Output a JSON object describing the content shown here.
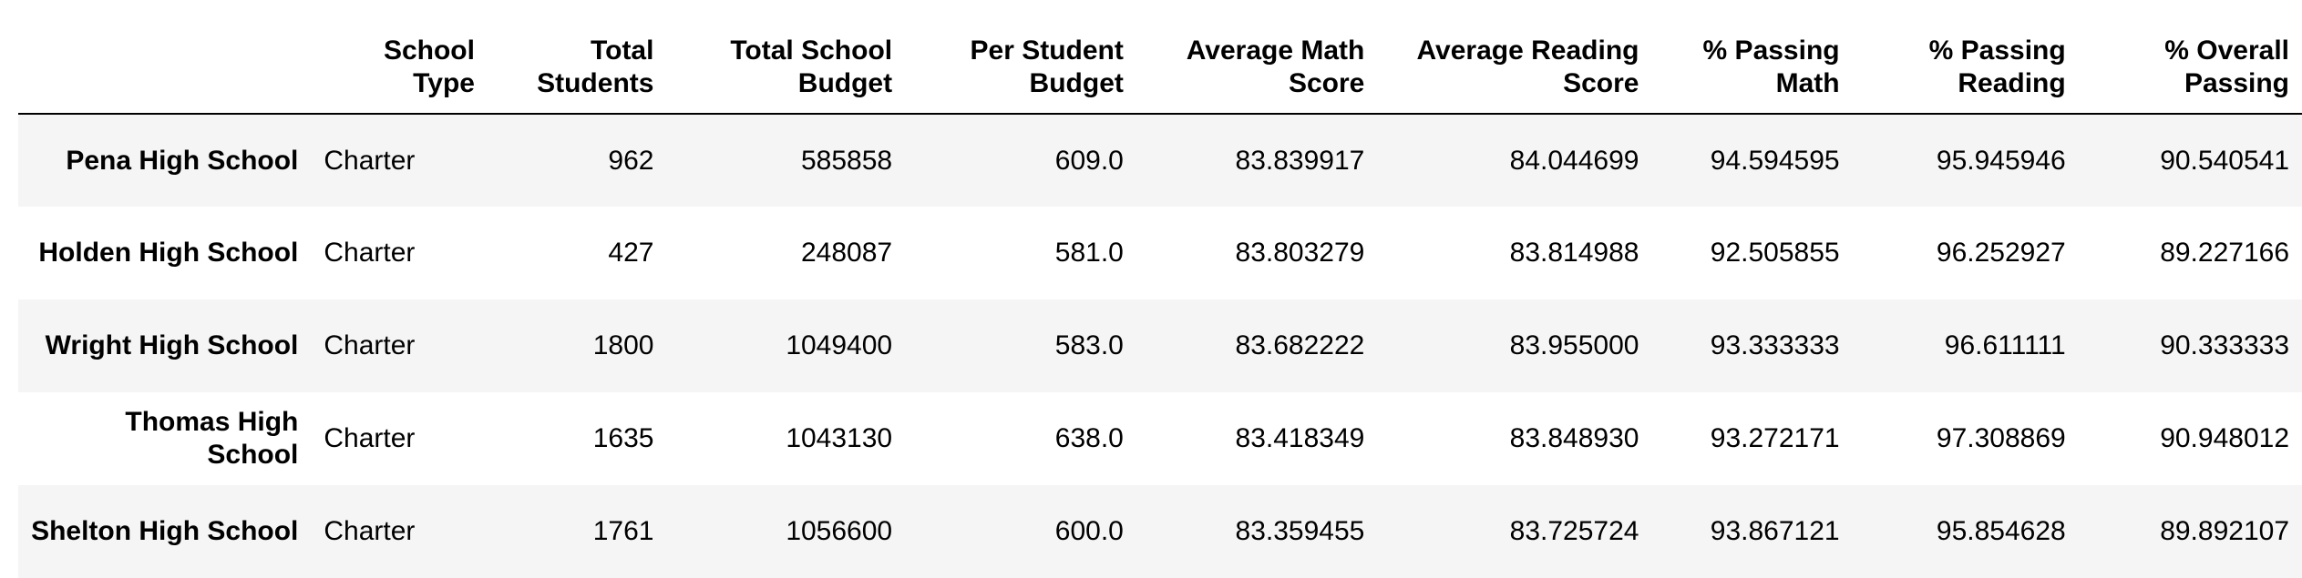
{
  "table": {
    "columns": [
      "",
      "School Type",
      "Total Students",
      "Total School Budget",
      "Per Student Budget",
      "Average Math Score",
      "Average Reading Score",
      "% Passing Math",
      "% Passing Reading",
      "% Overall Passing"
    ],
    "rows": [
      {
        "school": "Pena High School",
        "cells": [
          "Charter",
          "962",
          "585858",
          "609.0",
          "83.839917",
          "84.044699",
          "94.594595",
          "95.945946",
          "90.540541"
        ]
      },
      {
        "school": "Holden High School",
        "cells": [
          "Charter",
          "427",
          "248087",
          "581.0",
          "83.803279",
          "83.814988",
          "92.505855",
          "96.252927",
          "89.227166"
        ]
      },
      {
        "school": "Wright High School",
        "cells": [
          "Charter",
          "1800",
          "1049400",
          "583.0",
          "83.682222",
          "83.955000",
          "93.333333",
          "96.611111",
          "90.333333"
        ]
      },
      {
        "school": "Thomas High School",
        "cells": [
          "Charter",
          "1635",
          "1043130",
          "638.0",
          "83.418349",
          "83.848930",
          "93.272171",
          "97.308869",
          "90.948012"
        ]
      },
      {
        "school": "Shelton High School",
        "cells": [
          "Charter",
          "1761",
          "1056600",
          "600.0",
          "83.359455",
          "83.725724",
          "93.867121",
          "95.854628",
          "89.892107"
        ]
      }
    ]
  },
  "colors": {
    "stripe": "#f5f5f5",
    "header_rule": "#000000",
    "text": "#000000"
  }
}
